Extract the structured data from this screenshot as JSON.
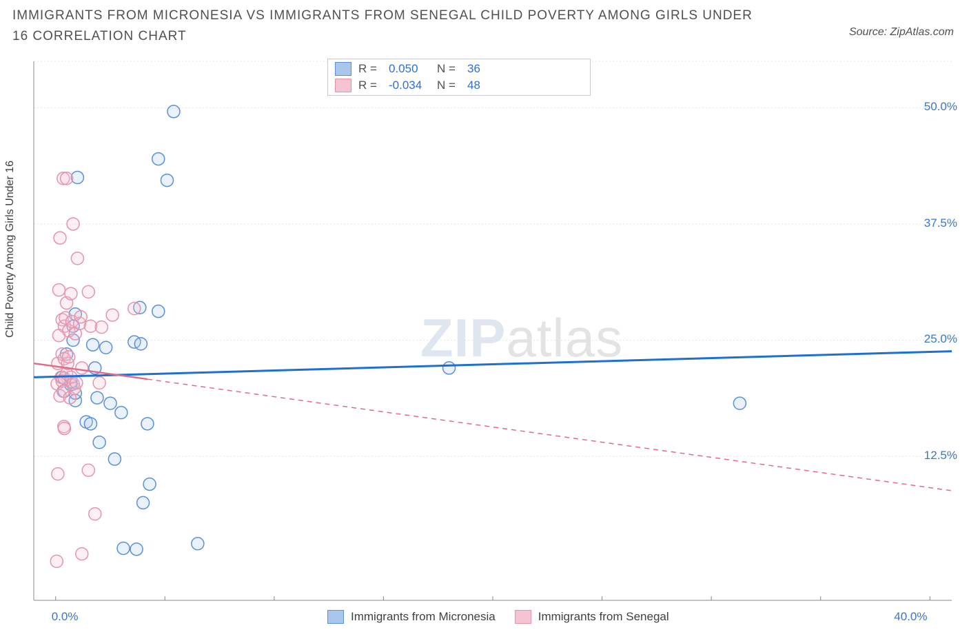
{
  "title": "IMMIGRANTS FROM MICRONESIA VS IMMIGRANTS FROM SENEGAL CHILD POVERTY AMONG GIRLS UNDER 16 CORRELATION CHART",
  "source_label": "Source: ZipAtlas.com",
  "yaxis_label": "Child Poverty Among Girls Under 16",
  "watermark": {
    "zip": "ZIP",
    "atlas": "atlas"
  },
  "chart": {
    "type": "scatter",
    "background_color": "#ffffff",
    "grid_color": "#e3e3e3",
    "axis_line_color": "#888888",
    "marker_radius": 9,
    "marker_stroke_width": 1.5,
    "marker_fill_opacity": 0.25,
    "xlim": [
      -1,
      41
    ],
    "ylim": [
      -3,
      55
    ],
    "x_axis": {
      "ticks": [
        0,
        5,
        10,
        15,
        20,
        25,
        30,
        35,
        40
      ],
      "labeled": {
        "0": "0.0%",
        "40": "40.0%"
      },
      "label_color": "#3b76c4"
    },
    "y_axis": {
      "ticks": [
        12.5,
        25.0,
        37.5,
        50.0
      ],
      "labels": [
        "12.5%",
        "25.0%",
        "37.5%",
        "50.0%"
      ],
      "label_color": "#3b76c4"
    },
    "series": [
      {
        "id": "micronesia",
        "name": "Immigrants from Micronesia",
        "color_stroke": "#5b8fd6",
        "color_fill": "#a9c7ec",
        "stats": {
          "R": "0.050",
          "N": "36",
          "value_color": "#2a6fd6"
        },
        "trend": {
          "type": "solid",
          "color": "#1f6fd1",
          "width": 3,
          "y_at_xmin": 21.0,
          "y_at_xmax": 23.8
        },
        "points": [
          [
            0.3,
            21.0
          ],
          [
            0.4,
            19.5
          ],
          [
            0.5,
            23.5
          ],
          [
            0.7,
            20.2
          ],
          [
            0.7,
            20.5
          ],
          [
            0.8,
            25.0
          ],
          [
            0.8,
            26.5
          ],
          [
            0.9,
            27.8
          ],
          [
            0.9,
            18.5
          ],
          [
            0.9,
            19.3
          ],
          [
            1.0,
            42.5
          ],
          [
            1.4,
            16.2
          ],
          [
            1.6,
            16.0
          ],
          [
            1.7,
            24.5
          ],
          [
            1.8,
            22.0
          ],
          [
            1.9,
            18.8
          ],
          [
            2.0,
            14.0
          ],
          [
            2.3,
            24.2
          ],
          [
            2.5,
            18.2
          ],
          [
            2.7,
            12.2
          ],
          [
            3.0,
            17.2
          ],
          [
            3.1,
            2.6
          ],
          [
            3.6,
            24.8
          ],
          [
            3.7,
            2.5
          ],
          [
            3.85,
            28.5
          ],
          [
            3.9,
            24.6
          ],
          [
            4.0,
            7.5
          ],
          [
            4.2,
            16.0
          ],
          [
            4.3,
            9.5
          ],
          [
            4.7,
            44.5
          ],
          [
            4.7,
            28.1
          ],
          [
            5.1,
            42.2
          ],
          [
            5.4,
            49.6
          ],
          [
            6.5,
            3.1
          ],
          [
            18.0,
            22.0
          ],
          [
            31.3,
            18.2
          ]
        ]
      },
      {
        "id": "senegal",
        "name": "Immigrants from Senegal",
        "color_stroke": "#e593ab",
        "color_fill": "#f5c3d2",
        "stats": {
          "R": "-0.034",
          "N": "48",
          "value_color": "#2a6fd6"
        },
        "trend": {
          "type": "dashed",
          "color": "#e06a8a",
          "width": 1.5,
          "solid_until_x": 4.2,
          "y_at_xmin": 22.5,
          "y_at_xmax": 8.8
        },
        "points": [
          [
            0.05,
            1.2
          ],
          [
            0.07,
            20.3
          ],
          [
            0.1,
            22.5
          ],
          [
            0.1,
            10.6
          ],
          [
            0.15,
            30.4
          ],
          [
            0.15,
            25.5
          ],
          [
            0.2,
            19.0
          ],
          [
            0.2,
            36.0
          ],
          [
            0.25,
            21.0
          ],
          [
            0.3,
            20.6
          ],
          [
            0.3,
            27.2
          ],
          [
            0.3,
            23.5
          ],
          [
            0.35,
            42.4
          ],
          [
            0.35,
            19.5
          ],
          [
            0.38,
            15.7
          ],
          [
            0.4,
            15.5
          ],
          [
            0.4,
            23.0
          ],
          [
            0.4,
            20.9
          ],
          [
            0.4,
            26.5
          ],
          [
            0.45,
            27.4
          ],
          [
            0.5,
            42.4
          ],
          [
            0.5,
            29.0
          ],
          [
            0.5,
            21.4
          ],
          [
            0.55,
            22.5
          ],
          [
            0.6,
            23.2
          ],
          [
            0.6,
            26.0
          ],
          [
            0.65,
            18.8
          ],
          [
            0.7,
            30.0
          ],
          [
            0.7,
            21.0
          ],
          [
            0.75,
            27.0
          ],
          [
            0.8,
            20.3
          ],
          [
            0.8,
            37.5
          ],
          [
            0.85,
            19.8
          ],
          [
            0.9,
            25.7
          ],
          [
            0.95,
            20.4
          ],
          [
            1.0,
            33.8
          ],
          [
            1.1,
            26.8
          ],
          [
            1.15,
            27.5
          ],
          [
            1.2,
            22.0
          ],
          [
            1.2,
            2.0
          ],
          [
            1.5,
            30.2
          ],
          [
            1.5,
            11.0
          ],
          [
            1.6,
            26.5
          ],
          [
            1.8,
            6.3
          ],
          [
            2.0,
            20.4
          ],
          [
            2.1,
            26.4
          ],
          [
            2.6,
            27.7
          ],
          [
            3.6,
            28.4
          ]
        ]
      }
    ],
    "legend_top_labels": {
      "R": "R =",
      "N": "N ="
    },
    "legend_bottom": true
  }
}
